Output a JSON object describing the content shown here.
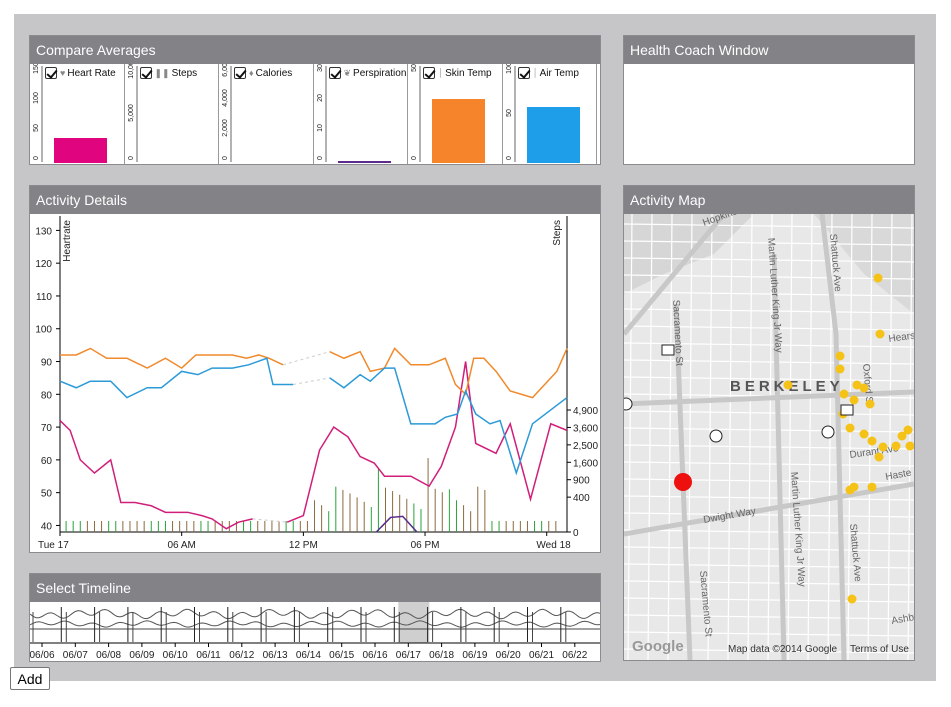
{
  "compare": {
    "title": "Compare Averages",
    "metrics": [
      {
        "label": "Heart Rate",
        "icon": "heart-icon",
        "checked": true,
        "axis": [
          "150",
          "100",
          "50",
          "0"
        ],
        "avg_fraction": 0.31,
        "color": "#e0047e"
      },
      {
        "label": "Steps",
        "icon": "footsteps-icon",
        "checked": true,
        "axis": [
          "10,000",
          "5,000",
          "0"
        ],
        "avg_fraction": 0.0,
        "color": "#2aa23a"
      },
      {
        "label": "Calories",
        "icon": "flame-icon",
        "checked": true,
        "axis": [
          "6,000",
          "4,000",
          "2,000",
          "0"
        ],
        "avg_fraction": 0.0,
        "color": "#8888cc"
      },
      {
        "label": "Perspiration",
        "icon": "droplets-icon",
        "checked": true,
        "axis": [
          "30",
          "20",
          "10",
          "0"
        ],
        "avg_fraction": 0.02,
        "color": "#5a2a8c"
      },
      {
        "label": "Skin Temp",
        "icon": "thermometer-icon",
        "checked": true,
        "axis": [
          "50",
          "0"
        ],
        "avg_fraction": 0.8,
        "color": "#f5842a"
      },
      {
        "label": "Air Temp",
        "icon": "thermometer-icon",
        "checked": true,
        "axis": [
          "100",
          "50",
          "0"
        ],
        "avg_fraction": 0.7,
        "color": "#1e9de8"
      }
    ]
  },
  "coach": {
    "title": "Health Coach Window"
  },
  "activity": {
    "title": "Activity Details",
    "left_axis_label": "Heartrate",
    "right_axis_label": "Steps",
    "colors": {
      "heartrate": "#d01f7a",
      "skin": "#f08a2c",
      "air": "#2b9ad8",
      "steps": "#8b6a3f",
      "perspiration": "#5a2a8c"
    }
  },
  "map": {
    "title": "Activity Map",
    "city_label": "BERKELEY",
    "streets": [
      "Hopkins",
      "Sacramento St",
      "Martin Luther King Jr Way",
      "Shattuck Ave",
      "Oxford St",
      "Durant Ave",
      "Haste",
      "Dwight Way",
      "Hearst",
      "Ashby"
    ],
    "credit_google": "Google",
    "credit_data": "Map data ©2014 Google",
    "credit_terms": "Terms of Use"
  },
  "timeline": {
    "title": "Select Timeline",
    "dates": [
      "06/06",
      "06/07",
      "06/08",
      "06/09",
      "06/10",
      "06/11",
      "06/12",
      "06/13",
      "06/14",
      "06/15",
      "06/16",
      "06/17",
      "06/18",
      "06/19",
      "06/20",
      "06/21",
      "06/22"
    ]
  },
  "add_button": "Add",
  "chart_data": [
    {
      "type": "line",
      "title": "Activity Details",
      "xlabel": "",
      "ylabel": "Heartrate",
      "y2label": "Steps",
      "x_ticks": [
        "Tue 17",
        "06 AM",
        "12 PM",
        "06 PM",
        "Wed 18"
      ],
      "x_range_hours": [
        0,
        25
      ],
      "ylim": [
        38,
        135
      ],
      "y_ticks": [
        40,
        50,
        60,
        70,
        80,
        90,
        100,
        110,
        120,
        130
      ],
      "y2_ticks": [
        "0",
        "400",
        "900",
        "1,600",
        "2,500",
        "3,600",
        "4,900"
      ],
      "y2_ticks_values": [
        0,
        400,
        900,
        1600,
        2500,
        3600,
        4900
      ],
      "series": [
        {
          "name": "Heartrate",
          "x": [
            0,
            0.5,
            1,
            1.7,
            2.5,
            3,
            3.7,
            4.5,
            5.2,
            6.3,
            7,
            7.5,
            8.2,
            8.8,
            9.5,
            11.2,
            12,
            12.8,
            13.5,
            14.2,
            14.8,
            15.5,
            16,
            17.3,
            18.2,
            18.8,
            19.5,
            20,
            20.5,
            21.5,
            22.2,
            23.2,
            24.2,
            25
          ],
          "values": [
            72,
            69,
            60,
            56,
            60,
            47,
            47,
            46,
            44,
            44,
            43,
            42,
            39,
            41,
            42,
            41,
            43,
            63,
            70,
            67,
            61,
            59,
            55,
            55,
            52,
            58,
            70,
            90,
            65,
            62,
            71,
            48,
            71,
            69
          ]
        },
        {
          "name": "Skin Temp",
          "x": [
            0,
            0.8,
            1.5,
            2.3,
            3.3,
            4.3,
            5.2,
            6,
            6.7,
            7.5,
            8.5,
            9.2,
            9.8,
            10.3,
            11,
            13.3,
            14,
            14.8,
            15.3,
            16,
            16.5,
            17.3,
            18.2,
            19,
            19.5,
            20,
            20.4,
            20.9,
            21.5,
            22.2,
            23.3,
            24.5,
            25
          ],
          "values": [
            92,
            92,
            94,
            91,
            91,
            88,
            91,
            88,
            92,
            92,
            92,
            91,
            92,
            91,
            89,
            93,
            91,
            93,
            87,
            88,
            94,
            89,
            89,
            91,
            83,
            80,
            91,
            91,
            87,
            81,
            79,
            87,
            94
          ]
        },
        {
          "name": "Air Temp",
          "x": [
            0,
            0.8,
            1.5,
            2.5,
            3.3,
            4.3,
            5,
            6,
            6.8,
            7.5,
            8.5,
            9.3,
            10.2,
            10.5,
            11.5,
            13.3,
            14,
            14.8,
            15.3,
            16,
            16.5,
            17.3,
            18.5,
            19,
            19.6,
            20,
            20.5,
            21.2,
            21.7,
            22.5,
            23.3,
            25
          ],
          "values": [
            84,
            82,
            84,
            84,
            79,
            82,
            82,
            87,
            86,
            88,
            88,
            89,
            91,
            83,
            83,
            85,
            82,
            86,
            84,
            88,
            88,
            71,
            71,
            73,
            74,
            81,
            74,
            71,
            72,
            56,
            71,
            79
          ]
        }
      ]
    },
    {
      "type": "area",
      "title": "Select Timeline",
      "categories": [
        "06/06",
        "06/07",
        "06/08",
        "06/09",
        "06/10",
        "06/11",
        "06/12",
        "06/13",
        "06/14",
        "06/15",
        "06/16",
        "06/17",
        "06/18",
        "06/19",
        "06/20",
        "06/21",
        "06/22"
      ],
      "selection": [
        "06/17",
        "06/18"
      ]
    }
  ]
}
